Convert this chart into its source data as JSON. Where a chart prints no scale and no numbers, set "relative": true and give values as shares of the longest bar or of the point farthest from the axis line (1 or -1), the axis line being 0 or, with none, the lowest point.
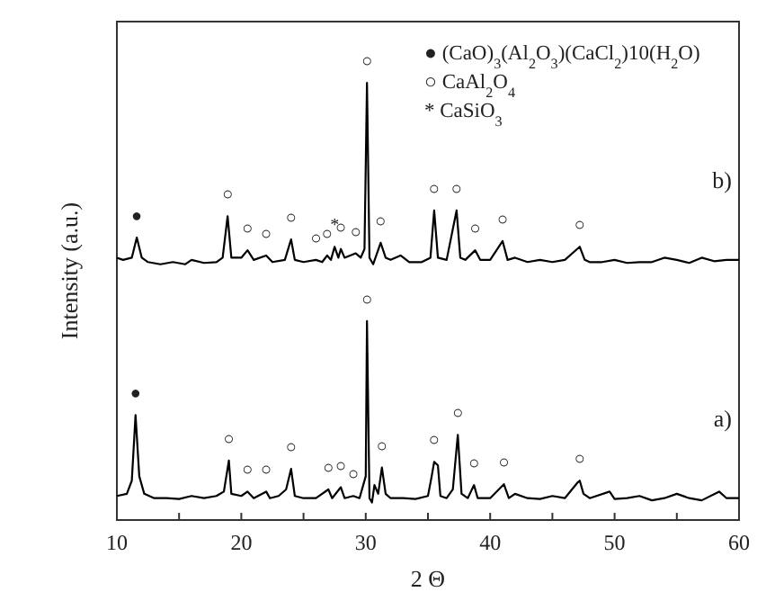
{
  "chart_data": {
    "type": "line",
    "relative": true,
    "xlabel": "2 Θ",
    "ylabel": "Intensity (a.u.)",
    "xlim": [
      10,
      60
    ],
    "xticks": [
      10,
      {
        "value": 15,
        "label": null
      },
      20,
      {
        "value": 25,
        "label": null
      },
      30,
      {
        "value": 35,
        "label": null
      },
      40,
      {
        "value": 45,
        "label": null
      },
      50,
      {
        "value": 55,
        "label": null
      },
      60
    ],
    "marker": "none",
    "line_style": "solid",
    "series": [
      {
        "name": "b)",
        "color": "#000000",
        "x": [
          10,
          10.5,
          11.2,
          11.6,
          12,
          12.5,
          13.5,
          14.5,
          15.5,
          16,
          17,
          18,
          18.5,
          18.9,
          19.2,
          20,
          20.5,
          21,
          22,
          22.5,
          23.5,
          24,
          24.3,
          25,
          26,
          26.5,
          26.9,
          27.2,
          27.5,
          27.8,
          28,
          28.3,
          29.2,
          29.6,
          29.9,
          30.1,
          30.3,
          30.6,
          31.2,
          31.6,
          32,
          32.8,
          33.5,
          34.5,
          35.2,
          35.5,
          35.8,
          36.5,
          37.3,
          37.6,
          38,
          38.8,
          39.2,
          40,
          41,
          41.4,
          42,
          43,
          44,
          45,
          46,
          47.2,
          47.6,
          48,
          49,
          50,
          51,
          52,
          53,
          54,
          55,
          56,
          57,
          58,
          59,
          60
        ],
        "values": [
          0.6,
          0.595,
          0.6,
          0.646,
          0.6,
          0.59,
          0.585,
          0.59,
          0.585,
          0.595,
          0.588,
          0.59,
          0.6,
          0.695,
          0.6,
          0.6,
          0.617,
          0.595,
          0.605,
          0.59,
          0.595,
          0.642,
          0.595,
          0.59,
          0.595,
          0.59,
          0.605,
          0.595,
          0.625,
          0.6,
          0.62,
          0.6,
          0.61,
          0.6,
          0.62,
          1,
          0.6,
          0.585,
          0.634,
          0.6,
          0.595,
          0.605,
          0.59,
          0.59,
          0.6,
          0.708,
          0.6,
          0.595,
          0.708,
          0.6,
          0.595,
          0.617,
          0.595,
          0.595,
          0.638,
          0.595,
          0.6,
          0.59,
          0.595,
          0.59,
          0.595,
          0.625,
          0.595,
          0.59,
          0.59,
          0.595,
          0.588,
          0.59,
          0.59,
          0.6,
          0.595,
          0.588,
          0.6,
          0.592,
          0.595,
          0.595
        ]
      },
      {
        "name": "a)",
        "color": "#000000",
        "x": [
          10,
          10.8,
          11.2,
          11.5,
          11.8,
          12.2,
          13,
          14,
          15,
          16,
          17,
          18,
          18.6,
          19,
          19.2,
          20,
          20.5,
          21,
          22,
          22.3,
          23,
          23.6,
          24,
          24.3,
          25,
          26,
          27,
          27.3,
          28,
          28.3,
          29,
          29.5,
          30,
          30.1,
          30.3,
          30.5,
          30.7,
          31,
          31.3,
          31.6,
          32,
          33,
          34,
          35,
          35.3,
          35.5,
          35.8,
          36,
          36.5,
          37,
          37.4,
          37.7,
          38.2,
          38.7,
          39,
          40,
          41.1,
          41.5,
          42,
          43,
          44,
          45,
          46,
          47,
          47.2,
          47.5,
          48,
          49.6,
          50,
          51,
          52,
          53,
          54,
          55,
          56,
          57,
          58.4,
          59,
          60
        ],
        "values": [
          0.055,
          0.06,
          0.09,
          0.24,
          0.1,
          0.06,
          0.05,
          0.05,
          0.048,
          0.055,
          0.05,
          0.055,
          0.065,
          0.136,
          0.06,
          0.055,
          0.065,
          0.05,
          0.065,
          0.05,
          0.055,
          0.07,
          0.117,
          0.055,
          0.05,
          0.05,
          0.07,
          0.05,
          0.075,
          0.05,
          0.055,
          0.05,
          0.1,
          0.455,
          0.05,
          0.04,
          0.08,
          0.06,
          0.12,
          0.06,
          0.05,
          0.05,
          0.048,
          0.055,
          0.1,
          0.133,
          0.125,
          0.055,
          0.05,
          0.07,
          0.195,
          0.06,
          0.05,
          0.08,
          0.05,
          0.05,
          0.082,
          0.05,
          0.06,
          0.05,
          0.048,
          0.055,
          0.05,
          0.085,
          0.09,
          0.06,
          0.05,
          0.065,
          0.048,
          0.05,
          0.055,
          0.045,
          0.05,
          0.06,
          0.05,
          0.045,
          0.065,
          0.05,
          0.05
        ]
      }
    ],
    "annotations": [
      "● (CaO)$_{3}$(Al$_{2}$O$_{3}$)(CaCl$_{2}$)10(H$_{2}$O)",
      "○ CaAl$_{2}$O$_{4}$",
      "* CaSiO$_{3}$",
      {
        "text": "●",
        "x": 11.6,
        "y": 0.646
      },
      {
        "text": "○",
        "x": 18.9,
        "y": 0.695
      },
      {
        "text": "○",
        "x": 20.5,
        "y": 0.617
      },
      {
        "text": "○",
        "x": 22,
        "y": 0.605
      },
      {
        "text": "○",
        "x": 24,
        "y": 0.642
      },
      {
        "text": "○",
        "x": 26,
        "y": 0.595
      },
      {
        "text": "○",
        "x": 26.9,
        "y": 0.605
      },
      {
        "text": "○",
        "x": 28,
        "y": 0.62
      },
      {
        "text": "○",
        "x": 29.2,
        "y": 0.61
      },
      {
        "text": "○",
        "x": 30.1,
        "y": 1
      },
      {
        "text": "○",
        "x": 31.2,
        "y": 0.634
      },
      {
        "text": "○",
        "x": 35.5,
        "y": 0.708
      },
      {
        "text": "○",
        "x": 37.3,
        "y": 0.708
      },
      {
        "text": "○",
        "x": 38.8,
        "y": 0.617
      },
      {
        "text": "○",
        "x": 41,
        "y": 0.638
      },
      {
        "text": "○",
        "x": 47.2,
        "y": 0.625
      },
      {
        "text": "*",
        "x": 27.5,
        "y": 0.625
      },
      {
        "text": "●",
        "x": 11.5,
        "y": 0.24
      },
      {
        "text": "○",
        "x": 19,
        "y": 0.136
      },
      {
        "text": "○",
        "x": 20.5,
        "y": 0.065
      },
      {
        "text": "○",
        "x": 22,
        "y": 0.065
      },
      {
        "text": "○",
        "x": 24,
        "y": 0.117
      },
      {
        "text": "○",
        "x": 27,
        "y": 0.07
      },
      {
        "text": "○",
        "x": 28,
        "y": 0.075
      },
      {
        "text": "○",
        "x": 29,
        "y": 0.055
      },
      {
        "text": "○",
        "x": 30.1,
        "y": 0.455
      },
      {
        "text": "○",
        "x": 31.3,
        "y": 0.12
      },
      {
        "text": "○",
        "x": 35.5,
        "y": 0.133
      },
      {
        "text": "○",
        "x": 37.4,
        "y": 0.195
      },
      {
        "text": "○",
        "x": 38.7,
        "y": 0.08
      },
      {
        "text": "○",
        "x": 41.1,
        "y": 0.082
      },
      {
        "text": "○",
        "x": 47.2,
        "y": 0.09
      }
    ]
  }
}
